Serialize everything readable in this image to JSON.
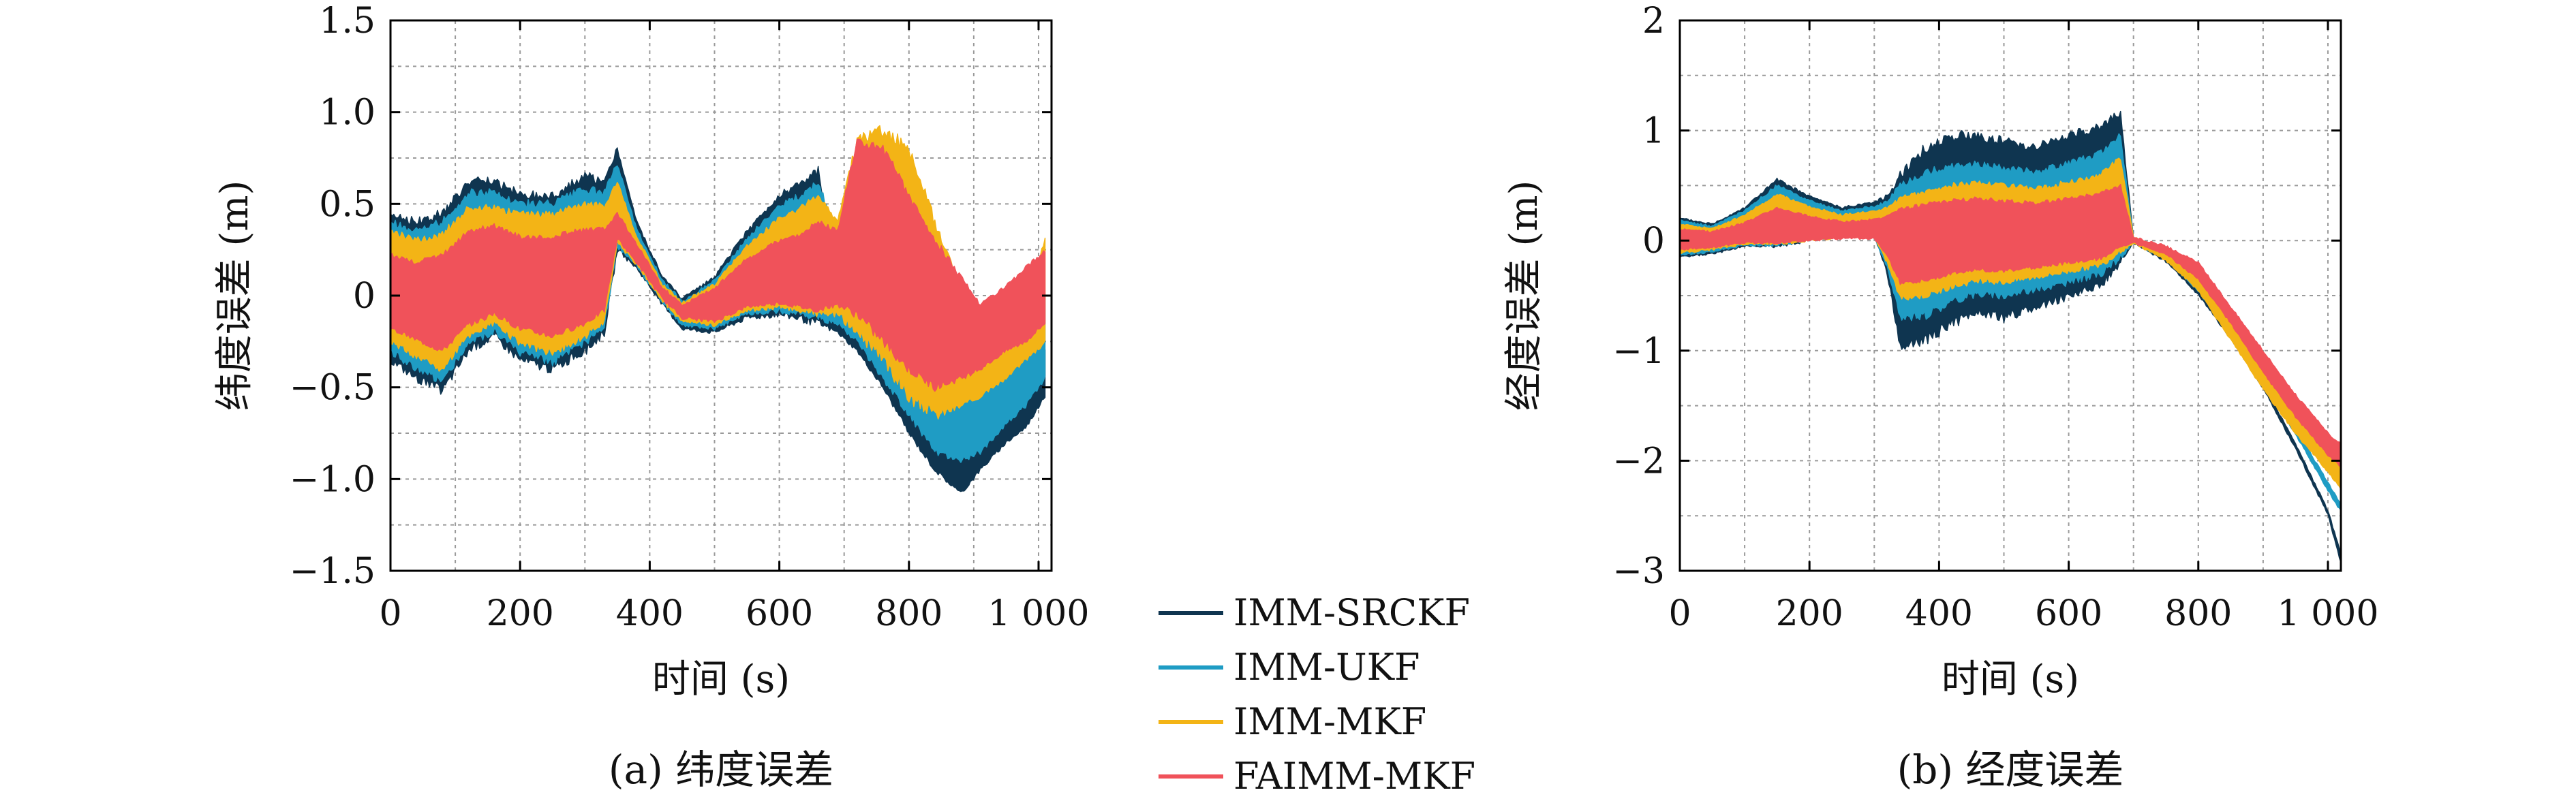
{
  "colors": {
    "IMM-SRCKF": "#0f3550",
    "IMM-UKF": "#1f9cc4",
    "IMM-MKF": "#f3b416",
    "FAIMM-MKF": "#f0525a",
    "grid": "#9a9a9a",
    "axis": "#000000"
  },
  "legend": {
    "placement": "between panels, bottom",
    "items": [
      {
        "label": "IMM-SRCKF",
        "color_key": "IMM-SRCKF"
      },
      {
        "label": "IMM-UKF",
        "color_key": "IMM-UKF"
      },
      {
        "label": "IMM-MKF",
        "color_key": "IMM-MKF"
      },
      {
        "label": "FAIMM-MKF",
        "color_key": "FAIMM-MKF"
      }
    ]
  },
  "chart_data": [
    {
      "type": "line",
      "caption": "(a) 纬度误差",
      "xlabel": "时间 (s)",
      "ylabel": "纬度误差 (m)",
      "xlim": [
        0,
        1020
      ],
      "ylim": [
        -1.5,
        1.5
      ],
      "grid": true,
      "xticks": [
        0,
        200,
        400,
        600,
        800,
        1000
      ],
      "xtick_labels": [
        "0",
        "200",
        "400",
        "600",
        "800",
        "1 000"
      ],
      "yticks": [
        -1.5,
        -1.0,
        -0.5,
        0,
        0.5,
        1.0,
        1.5
      ],
      "ytick_labels": [
        "−1.5",
        "−1.0",
        "−0.5",
        "0",
        "0.5",
        "1.0",
        "1.5"
      ],
      "series": [
        {
          "name": "IMM-SRCKF",
          "x": [
            0,
            40,
            80,
            120,
            160,
            200,
            250,
            300,
            330,
            350,
            380,
            420,
            450,
            500,
            550,
            600,
            630,
            660,
            690,
            720,
            760,
            800,
            840,
            880,
            910,
            950,
            980,
            1010
          ],
          "upper": [
            0.45,
            0.4,
            0.45,
            0.62,
            0.62,
            0.55,
            0.55,
            0.65,
            0.62,
            0.8,
            0.4,
            0.1,
            -0.02,
            0.1,
            0.35,
            0.55,
            0.6,
            0.68,
            0.05,
            0.02,
            -0.1,
            -0.25,
            -0.55,
            -0.65,
            -0.55,
            -0.5,
            -0.4,
            -0.3
          ],
          "lower": [
            -0.35,
            -0.45,
            -0.52,
            -0.3,
            -0.22,
            -0.35,
            -0.4,
            -0.3,
            -0.2,
            0.25,
            0.15,
            -0.05,
            -0.18,
            -0.2,
            -0.12,
            -0.1,
            -0.12,
            -0.15,
            -0.2,
            -0.3,
            -0.5,
            -0.75,
            -0.95,
            -1.08,
            -0.95,
            -0.8,
            -0.72,
            -0.55
          ]
        },
        {
          "name": "IMM-UKF",
          "x": [
            0,
            40,
            80,
            120,
            160,
            200,
            250,
            300,
            330,
            350,
            380,
            420,
            450,
            500,
            550,
            600,
            630,
            660,
            690,
            720,
            760,
            800,
            840,
            880,
            910,
            950,
            980,
            1010
          ],
          "upper": [
            0.4,
            0.35,
            0.4,
            0.56,
            0.56,
            0.5,
            0.5,
            0.58,
            0.56,
            0.72,
            0.36,
            0.08,
            -0.03,
            0.08,
            0.31,
            0.49,
            0.54,
            0.62,
            0.3,
            0.28,
            0.2,
            0.05,
            -0.25,
            -0.35,
            -0.3,
            -0.25,
            -0.15,
            0.0
          ],
          "lower": [
            -0.3,
            -0.4,
            -0.46,
            -0.26,
            -0.19,
            -0.31,
            -0.36,
            -0.26,
            -0.17,
            0.27,
            0.16,
            -0.04,
            -0.16,
            -0.18,
            -0.1,
            -0.08,
            -0.1,
            -0.12,
            -0.15,
            -0.25,
            -0.45,
            -0.65,
            -0.85,
            -0.9,
            -0.85,
            -0.7,
            -0.6,
            -0.45
          ]
        },
        {
          "name": "IMM-MKF",
          "x": [
            0,
            40,
            80,
            120,
            160,
            200,
            250,
            300,
            330,
            350,
            380,
            420,
            450,
            500,
            550,
            600,
            630,
            660,
            690,
            720,
            760,
            800,
            840,
            880,
            910,
            950,
            980,
            1010
          ],
          "upper": [
            0.35,
            0.3,
            0.33,
            0.48,
            0.48,
            0.44,
            0.44,
            0.5,
            0.49,
            0.62,
            0.32,
            0.06,
            -0.04,
            0.06,
            0.27,
            0.42,
            0.47,
            0.55,
            0.4,
            0.85,
            0.9,
            0.8,
            0.4,
            0.05,
            -0.2,
            -0.1,
            0.0,
            0.3
          ],
          "lower": [
            -0.25,
            -0.33,
            -0.4,
            -0.22,
            -0.15,
            -0.26,
            -0.31,
            -0.22,
            -0.14,
            0.29,
            0.17,
            -0.03,
            -0.14,
            -0.16,
            -0.08,
            -0.06,
            -0.08,
            -0.1,
            -0.1,
            -0.2,
            -0.35,
            -0.55,
            -0.65,
            -0.6,
            -0.55,
            -0.45,
            -0.35,
            -0.25
          ]
        },
        {
          "name": "FAIMM-MKF",
          "x": [
            0,
            40,
            80,
            120,
            160,
            200,
            250,
            300,
            330,
            350,
            380,
            420,
            450,
            500,
            550,
            600,
            630,
            660,
            690,
            720,
            760,
            800,
            840,
            880,
            910,
            950,
            980,
            1010
          ],
          "upper": [
            0.22,
            0.18,
            0.22,
            0.35,
            0.38,
            0.32,
            0.32,
            0.36,
            0.36,
            0.45,
            0.28,
            0.04,
            -0.05,
            0.04,
            0.2,
            0.3,
            0.33,
            0.4,
            0.35,
            0.85,
            0.8,
            0.55,
            0.3,
            0.1,
            -0.05,
            0.05,
            0.15,
            0.25
          ],
          "lower": [
            -0.18,
            -0.24,
            -0.3,
            -0.16,
            -0.1,
            -0.18,
            -0.22,
            -0.15,
            -0.08,
            0.31,
            0.18,
            -0.02,
            -0.12,
            -0.14,
            -0.06,
            -0.04,
            -0.06,
            -0.08,
            -0.05,
            -0.1,
            -0.25,
            -0.4,
            -0.5,
            -0.45,
            -0.4,
            -0.3,
            -0.25,
            -0.15
          ]
        }
      ]
    },
    {
      "type": "line",
      "caption": "(b) 经度误差",
      "xlabel": "时间 (s)",
      "ylabel": "经度误差 (m)",
      "xlim": [
        0,
        1020
      ],
      "ylim": [
        -3,
        2
      ],
      "grid": true,
      "xticks": [
        0,
        200,
        400,
        600,
        800,
        1000
      ],
      "xtick_labels": [
        "0",
        "200",
        "400",
        "600",
        "800",
        "1 000"
      ],
      "yticks": [
        -3,
        -2,
        -1,
        0,
        1,
        2
      ],
      "ytick_labels": [
        "−3",
        "−2",
        "−1",
        "0",
        "1",
        "2"
      ],
      "series": [
        {
          "name": "IMM-SRCKF",
          "x": [
            0,
            50,
            100,
            150,
            200,
            250,
            300,
            320,
            340,
            380,
            420,
            460,
            500,
            550,
            600,
            650,
            680,
            700,
            750,
            800,
            850,
            900,
            950,
            1000,
            1020
          ],
          "upper": [
            0.2,
            0.15,
            0.3,
            0.55,
            0.4,
            0.3,
            0.35,
            0.4,
            0.6,
            0.85,
            0.95,
            0.95,
            0.9,
            0.85,
            0.95,
            1.05,
            1.15,
            0.02,
            -0.15,
            -0.45,
            -0.85,
            -1.3,
            -1.85,
            -2.45,
            -2.85
          ],
          "lower": [
            -0.15,
            -0.12,
            -0.05,
            -0.05,
            0.0,
            0.05,
            0.05,
            -0.3,
            -0.95,
            -0.9,
            -0.75,
            -0.65,
            -0.7,
            -0.6,
            -0.5,
            -0.4,
            -0.2,
            -0.02,
            -0.19,
            -0.49,
            -0.89,
            -1.34,
            -1.89,
            -2.49,
            -2.93
          ]
        },
        {
          "name": "IMM-UKF",
          "x": [
            0,
            50,
            100,
            150,
            200,
            250,
            300,
            320,
            340,
            380,
            420,
            460,
            500,
            550,
            600,
            650,
            680,
            700,
            750,
            800,
            850,
            900,
            950,
            1000,
            1020
          ],
          "upper": [
            0.18,
            0.13,
            0.27,
            0.5,
            0.36,
            0.27,
            0.31,
            0.35,
            0.5,
            0.62,
            0.68,
            0.7,
            0.66,
            0.62,
            0.7,
            0.8,
            0.95,
            0.02,
            -0.14,
            -0.43,
            -0.8,
            -1.22,
            -1.7,
            -2.2,
            -2.4
          ],
          "lower": [
            -0.13,
            -0.1,
            -0.04,
            -0.04,
            0.0,
            0.04,
            0.04,
            -0.25,
            -0.7,
            -0.68,
            -0.55,
            -0.48,
            -0.5,
            -0.44,
            -0.38,
            -0.3,
            -0.15,
            -0.02,
            -0.17,
            -0.46,
            -0.84,
            -1.27,
            -1.76,
            -2.27,
            -2.46
          ]
        },
        {
          "name": "IMM-MKF",
          "x": [
            0,
            50,
            100,
            150,
            200,
            250,
            300,
            320,
            340,
            380,
            420,
            460,
            500,
            550,
            600,
            650,
            680,
            700,
            750,
            800,
            850,
            900,
            950,
            1000,
            1020
          ],
          "upper": [
            0.15,
            0.11,
            0.23,
            0.42,
            0.31,
            0.23,
            0.27,
            0.3,
            0.38,
            0.45,
            0.5,
            0.52,
            0.5,
            0.47,
            0.53,
            0.6,
            0.75,
            0.03,
            -0.1,
            -0.35,
            -0.75,
            -1.1,
            -1.5,
            -1.9,
            -2.05
          ],
          "lower": [
            -0.11,
            -0.08,
            -0.03,
            -0.03,
            0.0,
            0.03,
            0.03,
            -0.2,
            -0.52,
            -0.5,
            -0.42,
            -0.36,
            -0.38,
            -0.33,
            -0.28,
            -0.22,
            -0.1,
            -0.02,
            -0.18,
            -0.45,
            -0.9,
            -1.35,
            -1.75,
            -2.1,
            -2.25
          ]
        },
        {
          "name": "FAIMM-MKF",
          "x": [
            0,
            50,
            100,
            150,
            200,
            250,
            300,
            320,
            340,
            380,
            420,
            460,
            500,
            550,
            600,
            650,
            680,
            700,
            750,
            800,
            850,
            900,
            950,
            1000,
            1020
          ],
          "upper": [
            0.1,
            0.08,
            0.16,
            0.3,
            0.22,
            0.17,
            0.19,
            0.22,
            0.28,
            0.33,
            0.36,
            0.38,
            0.36,
            0.34,
            0.38,
            0.43,
            0.5,
            0.03,
            -0.05,
            -0.2,
            -0.6,
            -1.0,
            -1.4,
            -1.75,
            -1.85
          ],
          "lower": [
            -0.08,
            -0.06,
            -0.02,
            -0.02,
            0.0,
            0.02,
            0.02,
            -0.14,
            -0.38,
            -0.36,
            -0.3,
            -0.26,
            -0.28,
            -0.24,
            -0.2,
            -0.16,
            -0.06,
            -0.02,
            -0.12,
            -0.35,
            -0.75,
            -1.2,
            -1.6,
            -1.95,
            -2.05
          ]
        }
      ]
    }
  ]
}
